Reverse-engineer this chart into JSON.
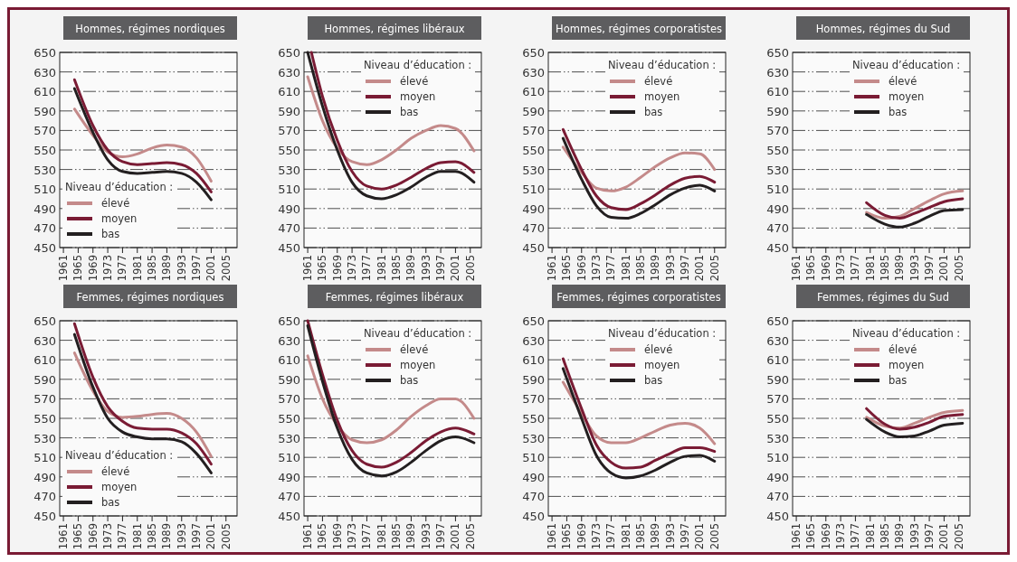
{
  "chart_data": [
    {
      "type": "line",
      "title": "Hommes, régimes nordiques",
      "legend_title": "Niveau d’éducation :",
      "legend": "bottom left",
      "grid": "y",
      "xlim": [
        1960,
        2008
      ],
      "xticks": [
        1961,
        1965,
        1969,
        1973,
        1977,
        1981,
        1985,
        1989,
        1993,
        1997,
        2001,
        2005
      ],
      "ylim": [
        450,
        650
      ],
      "yticks": [
        450,
        470,
        490,
        510,
        530,
        550,
        570,
        590,
        610,
        630,
        650
      ],
      "x": [
        1964,
        1969,
        1973,
        1977,
        1981,
        1985,
        1989,
        1993,
        1997,
        2001
      ],
      "series": [
        {
          "name": "élevé",
          "color": "#c48a8a",
          "values": [
            592,
            565,
            548,
            543,
            546,
            552,
            555,
            553,
            542,
            518
          ]
        },
        {
          "name": "moyen",
          "color": "#7a1b34",
          "values": [
            622,
            575,
            550,
            538,
            535,
            536,
            537,
            535,
            526,
            507
          ]
        },
        {
          "name": "bas",
          "color": "#231f20",
          "values": [
            613,
            568,
            540,
            528,
            526,
            527,
            528,
            526,
            517,
            499
          ]
        }
      ]
    },
    {
      "type": "line",
      "title": "Hommes, régimes libéraux",
      "legend_title": "Niveau d’éducation :",
      "legend": "top right",
      "grid": "y",
      "xlim": [
        1960,
        2008
      ],
      "xticks": [
        1961,
        1965,
        1969,
        1973,
        1977,
        1981,
        1985,
        1989,
        1993,
        1997,
        2001,
        2005
      ],
      "ylim": [
        450,
        650
      ],
      "yticks": [
        450,
        470,
        490,
        510,
        530,
        550,
        570,
        590,
        610,
        630,
        650
      ],
      "x": [
        1961,
        1965,
        1969,
        1973,
        1977,
        1981,
        1985,
        1989,
        1993,
        1997,
        2001,
        2006
      ],
      "series": [
        {
          "name": "élevé",
          "color": "#c48a8a",
          "values": [
            625,
            580,
            552,
            538,
            535,
            540,
            550,
            562,
            570,
            575,
            572,
            549
          ]
        },
        {
          "name": "moyen",
          "color": "#7a1b34",
          "x": [
            1962,
            1965,
            1969,
            1973,
            1977,
            1981,
            1985,
            1989,
            1993,
            1997,
            2001,
            2006
          ],
          "values": [
            650,
            605,
            560,
            528,
            513,
            510,
            514,
            522,
            531,
            537,
            538,
            527
          ]
        },
        {
          "name": "bas",
          "color": "#231f20",
          "values": [
            650,
            595,
            550,
            517,
            503,
            500,
            504,
            512,
            522,
            528,
            528,
            517
          ]
        }
      ]
    },
    {
      "type": "line",
      "title": "Hommes, régimes corporatistes",
      "legend_title": "Niveau d’éducation :",
      "legend": "top right",
      "grid": "y",
      "xlim": [
        1960,
        2008
      ],
      "xticks": [
        1961,
        1965,
        1969,
        1973,
        1977,
        1981,
        1985,
        1989,
        1993,
        1997,
        2001,
        2005
      ],
      "ylim": [
        450,
        650
      ],
      "yticks": [
        450,
        470,
        490,
        510,
        530,
        550,
        570,
        590,
        610,
        630,
        650
      ],
      "x": [
        1964,
        1969,
        1973,
        1977,
        1981,
        1985,
        1989,
        1993,
        1997,
        2001,
        2005
      ],
      "series": [
        {
          "name": "élevé",
          "color": "#c48a8a",
          "values": [
            553,
            527,
            511,
            508,
            512,
            522,
            533,
            542,
            547,
            546,
            530
          ]
        },
        {
          "name": "moyen",
          "color": "#7a1b34",
          "values": [
            571,
            530,
            503,
            491,
            489,
            495,
            504,
            514,
            521,
            523,
            517
          ]
        },
        {
          "name": "bas",
          "color": "#231f20",
          "values": [
            562,
            520,
            493,
            481,
            480,
            485,
            494,
            504,
            511,
            514,
            508
          ]
        }
      ]
    },
    {
      "type": "line",
      "title": "Hommes, régimes du Sud",
      "legend_title": "Niveau d’éducation :",
      "legend": "top right",
      "grid": "y",
      "xlim": [
        1960,
        2008
      ],
      "xticks": [
        1961,
        1965,
        1969,
        1973,
        1977,
        1981,
        1985,
        1989,
        1993,
        1997,
        2001,
        2005
      ],
      "ylim": [
        450,
        650
      ],
      "yticks": [
        450,
        470,
        490,
        510,
        530,
        550,
        570,
        590,
        610,
        630,
        650
      ],
      "x": [
        1980,
        1985,
        1989,
        1993,
        1997,
        2001,
        2006
      ],
      "series": [
        {
          "name": "élevé",
          "color": "#c48a8a",
          "values": [
            486,
            480,
            482,
            490,
            498,
            505,
            508
          ]
        },
        {
          "name": "moyen",
          "color": "#7a1b34",
          "values": [
            496,
            483,
            480,
            485,
            491,
            497,
            500
          ]
        },
        {
          "name": "bas",
          "color": "#231f20",
          "values": [
            484,
            474,
            471,
            475,
            482,
            488,
            489
          ]
        }
      ]
    },
    {
      "type": "line",
      "title": "Femmes, régimes nordiques",
      "legend_title": "Niveau d’éducation :",
      "legend": "bottom left",
      "grid": "y",
      "xlim": [
        1960,
        2008
      ],
      "xticks": [
        1961,
        1965,
        1969,
        1973,
        1977,
        1981,
        1985,
        1989,
        1993,
        1997,
        2001,
        2005
      ],
      "ylim": [
        450,
        650
      ],
      "yticks": [
        450,
        470,
        490,
        510,
        530,
        550,
        570,
        590,
        610,
        630,
        650
      ],
      "x": [
        1964,
        1969,
        1973,
        1977,
        1981,
        1985,
        1989,
        1993,
        1997,
        2001
      ],
      "series": [
        {
          "name": "élevé",
          "color": "#c48a8a",
          "values": [
            617,
            578,
            557,
            551,
            552,
            554,
            555,
            550,
            536,
            511
          ]
        },
        {
          "name": "moyen",
          "color": "#7a1b34",
          "values": [
            647,
            592,
            562,
            547,
            540,
            539,
            539,
            535,
            524,
            503
          ]
        },
        {
          "name": "bas",
          "color": "#231f20",
          "values": [
            636,
            582,
            550,
            536,
            531,
            529,
            529,
            526,
            514,
            494
          ]
        }
      ]
    },
    {
      "type": "line",
      "title": "Femmes, régimes libéraux",
      "legend_title": "Niveau d’éducation :",
      "legend": "top right",
      "grid": "y",
      "xlim": [
        1960,
        2008
      ],
      "xticks": [
        1961,
        1965,
        1969,
        1973,
        1977,
        1981,
        1985,
        1989,
        1993,
        1997,
        2001,
        2005
      ],
      "ylim": [
        450,
        650
      ],
      "yticks": [
        450,
        470,
        490,
        510,
        530,
        550,
        570,
        590,
        610,
        630,
        650
      ],
      "x": [
        1961,
        1965,
        1969,
        1973,
        1977,
        1981,
        1985,
        1989,
        1993,
        1997,
        2001,
        2006
      ],
      "series": [
        {
          "name": "élevé",
          "color": "#c48a8a",
          "values": [
            614,
            570,
            543,
            528,
            525,
            528,
            538,
            552,
            563,
            570,
            570,
            550
          ]
        },
        {
          "name": "moyen",
          "color": "#7a1b34",
          "values": [
            650,
            595,
            548,
            517,
            503,
            500,
            505,
            515,
            527,
            536,
            540,
            534
          ]
        },
        {
          "name": "bas",
          "color": "#231f20",
          "values": [
            645,
            588,
            540,
            508,
            494,
            491,
            495,
            505,
            517,
            527,
            531,
            525
          ]
        }
      ]
    },
    {
      "type": "line",
      "title": "Femmes, régimes corporatistes",
      "legend_title": "Niveau d’éducation :",
      "legend": "top right",
      "grid": "y",
      "xlim": [
        1960,
        2008
      ],
      "xticks": [
        1961,
        1965,
        1969,
        1973,
        1977,
        1981,
        1985,
        1989,
        1993,
        1997,
        2001,
        2005
      ],
      "ylim": [
        450,
        650
      ],
      "yticks": [
        450,
        470,
        490,
        510,
        530,
        550,
        570,
        590,
        610,
        630,
        650
      ],
      "x": [
        1964,
        1969,
        1973,
        1977,
        1981,
        1985,
        1989,
        1993,
        1997,
        2001,
        2005
      ],
      "series": [
        {
          "name": "élevé",
          "color": "#c48a8a",
          "values": [
            587,
            555,
            532,
            525,
            525,
            530,
            537,
            543,
            545,
            540,
            524
          ]
        },
        {
          "name": "moyen",
          "color": "#7a1b34",
          "values": [
            611,
            560,
            523,
            505,
            499,
            500,
            507,
            514,
            520,
            520,
            516
          ]
        },
        {
          "name": "bas",
          "color": "#231f20",
          "values": [
            601,
            550,
            512,
            494,
            489,
            491,
            497,
            505,
            511,
            512,
            506
          ]
        }
      ]
    },
    {
      "type": "line",
      "title": "Femmes, régimes du Sud",
      "legend_title": "Niveau d’éducation :",
      "legend": "top right",
      "grid": "y",
      "xlim": [
        1960,
        2008
      ],
      "xticks": [
        1961,
        1965,
        1969,
        1973,
        1977,
        1981,
        1985,
        1989,
        1993,
        1997,
        2001,
        2005
      ],
      "ylim": [
        450,
        650
      ],
      "yticks": [
        450,
        470,
        490,
        510,
        530,
        550,
        570,
        590,
        610,
        630,
        650
      ],
      "x": [
        1980,
        1985,
        1989,
        1993,
        1997,
        2001,
        2006
      ],
      "series": [
        {
          "name": "élevé",
          "color": "#c48a8a",
          "values": [
            551,
            542,
            540,
            545,
            551,
            556,
            558
          ]
        },
        {
          "name": "moyen",
          "color": "#7a1b34",
          "values": [
            560,
            544,
            539,
            541,
            546,
            552,
            554
          ]
        },
        {
          "name": "bas",
          "color": "#231f20",
          "values": [
            549,
            536,
            531,
            532,
            537,
            543,
            545
          ]
        }
      ]
    }
  ]
}
